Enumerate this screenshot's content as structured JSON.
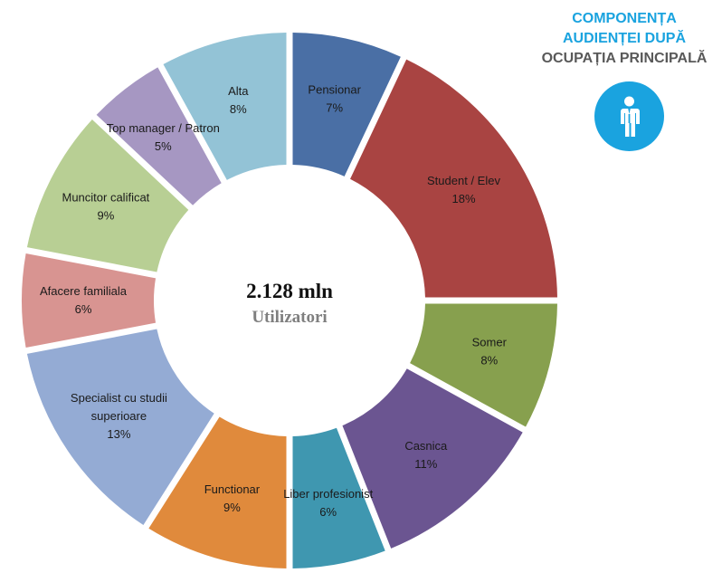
{
  "title": {
    "line1": "COMPONENȚA",
    "line2": "AUDIENȚEI DUPĂ",
    "line3": "OCUPAȚIA PRINCIPALĂ"
  },
  "icon": "person-icon",
  "colors": {
    "title_accent": "#1aa3df",
    "title_dark": "#595959"
  },
  "center": {
    "value": "2.128 mln",
    "label": "Utilizatori"
  },
  "chart_data": {
    "type": "pie",
    "donut": true,
    "slices": [
      {
        "label": [
          "Pensionar"
        ],
        "value": 7,
        "pct_label": "7%",
        "color": "#4a6fa5"
      },
      {
        "label": [
          "Student / Elev"
        ],
        "value": 18,
        "pct_label": "18%",
        "color": "#a94442"
      },
      {
        "label": [
          "Somer"
        ],
        "value": 8,
        "pct_label": "8%",
        "color": "#87a04e"
      },
      {
        "label": [
          "Casnica"
        ],
        "value": 11,
        "pct_label": "11%",
        "color": "#6b5591"
      },
      {
        "label": [
          "Liber profesionist"
        ],
        "value": 6,
        "pct_label": "6%",
        "color": "#3f97b0"
      },
      {
        "label": [
          "Functionar"
        ],
        "value": 9,
        "pct_label": "9%",
        "color": "#e08a3c"
      },
      {
        "label": [
          "Specialist cu studii",
          "superioare"
        ],
        "value": 13,
        "pct_label": "13%",
        "color": "#94abd4"
      },
      {
        "label": [
          "Afacere familiala"
        ],
        "value": 6,
        "pct_label": "6%",
        "color": "#d89491"
      },
      {
        "label": [
          "Muncitor calificat"
        ],
        "value": 9,
        "pct_label": "9%",
        "color": "#b8cf94"
      },
      {
        "label": [
          "Top manager / Patron"
        ],
        "value": 5,
        "pct_label": "5%",
        "color": "#a697c2"
      },
      {
        "label": [
          "Alta"
        ],
        "value": 8,
        "pct_label": "8%",
        "color": "#93c3d6"
      }
    ]
  }
}
